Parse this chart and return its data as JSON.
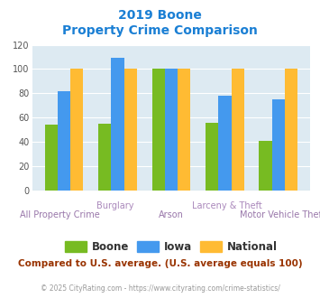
{
  "title_line1": "2019 Boone",
  "title_line2": "Property Crime Comparison",
  "title_color": "#1a7fd4",
  "categories": [
    "All Property Crime",
    "Burglary",
    "Arson",
    "Larceny & Theft",
    "Motor Vehicle Theft"
  ],
  "x_labels_row1": [
    "",
    "Burglary",
    "",
    "Larceny & Theft",
    ""
  ],
  "x_labels_row2": [
    "All Property Crime",
    "",
    "Arson",
    "",
    "Motor Vehicle Theft"
  ],
  "boone_values": [
    54,
    55,
    100,
    56,
    41
  ],
  "iowa_values": [
    82,
    109,
    100,
    78,
    75
  ],
  "national_values": [
    100,
    100,
    100,
    100,
    100
  ],
  "boone_color": "#77bb22",
  "iowa_color": "#4499ee",
  "national_color": "#ffbb33",
  "ylim": [
    0,
    120
  ],
  "yticks": [
    0,
    20,
    40,
    60,
    80,
    100,
    120
  ],
  "bg_color": "#ddeaf2",
  "legend_labels": [
    "Boone",
    "Iowa",
    "National"
  ],
  "footer_text": "Compared to U.S. average. (U.S. average equals 100)",
  "footer_color": "#993300",
  "copyright_text": "© 2025 CityRating.com - https://www.cityrating.com/crime-statistics/",
  "copyright_color": "#999999",
  "xlabel_color": "#aa88bb",
  "xlabel_color2": "#9977aa"
}
